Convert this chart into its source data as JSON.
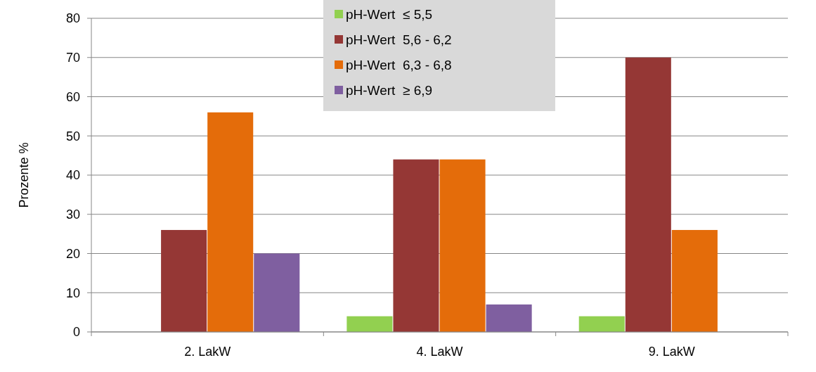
{
  "chart_data": {
    "type": "bar",
    "ylabel": "Prozente %",
    "categories": [
      "2. LakW",
      "4. LakW",
      "9. LakW"
    ],
    "series": [
      {
        "name": "pH-Wert  ≤ 5,5",
        "color": "#92d050",
        "values": [
          0,
          4,
          4
        ]
      },
      {
        "name": "pH-Wert  5,6 - 6,2",
        "color": "#953735",
        "values": [
          26,
          44,
          70
        ]
      },
      {
        "name": "pH-Wert  6,3 - 6,8",
        "color": "#e46c0a",
        "values": [
          56,
          44,
          26
        ]
      },
      {
        "name": "pH-Wert  ≥ 6,9",
        "color": "#7f5fa0",
        "values": [
          20,
          7,
          0
        ]
      }
    ],
    "ylim": [
      0,
      80
    ],
    "yticks": [
      0,
      10,
      20,
      30,
      40,
      50,
      60,
      70,
      80
    ],
    "grid": "y",
    "legend": "top"
  }
}
